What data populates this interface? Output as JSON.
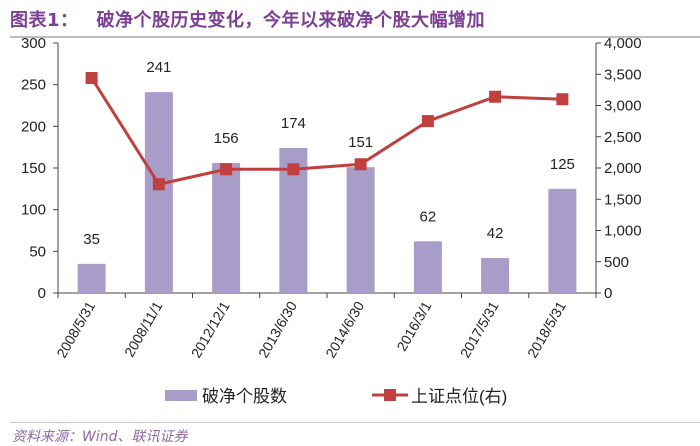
{
  "header": {
    "label": "图表1：",
    "title": "破净个股历史变化，今年以来破净个股大幅增加"
  },
  "source": "资料来源：Wind、联讯证券",
  "chart_data": {
    "type": "bar+line",
    "categories": [
      "2008/5/31",
      "2008/11/1",
      "2012/12/1",
      "2013/6/30",
      "2014/6/30",
      "2016/3/1",
      "2017/5/31",
      "2018/5/31"
    ],
    "series": [
      {
        "name": "破净个股数",
        "type": "bar",
        "axis": "left",
        "color": "#a89cc8",
        "values": [
          35,
          241,
          156,
          174,
          151,
          62,
          42,
          125
        ],
        "data_labels": [
          "35",
          "241",
          "156",
          "174",
          "151",
          "62",
          "42",
          "125"
        ]
      },
      {
        "name": "上证点位(右)",
        "type": "line",
        "axis": "right",
        "color": "#c0403e",
        "values": [
          3440,
          1740,
          1980,
          1980,
          2060,
          2750,
          3140,
          3100
        ]
      }
    ],
    "y_left": {
      "range": [
        0,
        300
      ],
      "ticks": [
        "0",
        "50",
        "100",
        "150",
        "200",
        "250",
        "300"
      ]
    },
    "y_right": {
      "range": [
        0,
        4000
      ],
      "ticks": [
        "0",
        "500",
        "1,000",
        "1,500",
        "2,000",
        "2,500",
        "3,000",
        "3,500",
        "4,000"
      ]
    },
    "grid": false,
    "legend": "bottom"
  }
}
